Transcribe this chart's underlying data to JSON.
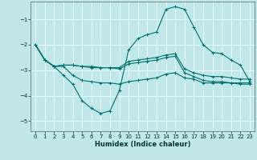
{
  "xlabel": "Humidex (Indice chaleur)",
  "bg_color": "#c0e8e8",
  "grid_color": "#e8ffff",
  "line_color": "#007070",
  "xlim": [
    -0.5,
    23.5
  ],
  "ylim": [
    -5.4,
    -0.3
  ],
  "yticks": [
    -5,
    -4,
    -3,
    -2,
    -1
  ],
  "xticks": [
    0,
    1,
    2,
    3,
    4,
    5,
    6,
    7,
    8,
    9,
    10,
    11,
    12,
    13,
    14,
    15,
    16,
    17,
    18,
    19,
    20,
    21,
    22,
    23
  ],
  "series": [
    {
      "x": [
        0,
        1,
        2,
        3,
        4,
        5,
        6,
        7,
        8,
        9,
        10,
        11,
        12,
        13,
        14,
        15,
        16,
        17,
        18,
        19,
        20,
        21,
        22,
        23
      ],
      "y": [
        -2.0,
        -2.6,
        -2.85,
        -3.2,
        -3.55,
        -4.2,
        -4.5,
        -4.7,
        -4.6,
        -3.8,
        -2.2,
        -1.75,
        -1.6,
        -1.5,
        -0.6,
        -0.5,
        -0.6,
        -1.3,
        -2.0,
        -2.3,
        -2.35,
        -2.6,
        -2.8,
        -3.45
      ]
    },
    {
      "x": [
        0,
        1,
        2,
        3,
        4,
        5,
        6,
        7,
        8,
        9,
        10,
        11,
        12,
        13,
        14,
        15,
        16,
        17,
        18,
        19,
        20,
        21,
        22,
        23
      ],
      "y": [
        -2.0,
        -2.6,
        -2.85,
        -2.8,
        -2.8,
        -2.85,
        -2.85,
        -2.9,
        -2.9,
        -2.9,
        -2.65,
        -2.6,
        -2.55,
        -2.5,
        -2.4,
        -2.35,
        -2.95,
        -3.1,
        -3.2,
        -3.25,
        -3.25,
        -3.3,
        -3.35,
        -3.35
      ]
    },
    {
      "x": [
        0,
        1,
        2,
        3,
        4,
        5,
        6,
        7,
        8,
        9,
        10,
        11,
        12,
        13,
        14,
        15,
        16,
        17,
        18,
        19,
        20,
        21,
        22,
        23
      ],
      "y": [
        -2.0,
        -2.6,
        -2.85,
        -2.8,
        -2.8,
        -2.85,
        -2.9,
        -2.9,
        -2.9,
        -2.95,
        -2.75,
        -2.7,
        -2.65,
        -2.6,
        -2.5,
        -2.45,
        -3.1,
        -3.25,
        -3.4,
        -3.45,
        -3.45,
        -3.5,
        -3.5,
        -3.5
      ]
    },
    {
      "x": [
        0,
        1,
        2,
        3,
        4,
        5,
        6,
        7,
        8,
        9,
        10,
        11,
        12,
        13,
        14,
        15,
        16,
        17,
        18,
        19,
        20,
        21,
        22,
        23
      ],
      "y": [
        -2.0,
        -2.6,
        -2.85,
        -2.85,
        -3.2,
        -3.4,
        -3.45,
        -3.5,
        -3.5,
        -3.55,
        -3.45,
        -3.4,
        -3.35,
        -3.3,
        -3.15,
        -3.1,
        -3.3,
        -3.35,
        -3.5,
        -3.5,
        -3.5,
        -3.5,
        -3.55,
        -3.55
      ]
    }
  ]
}
